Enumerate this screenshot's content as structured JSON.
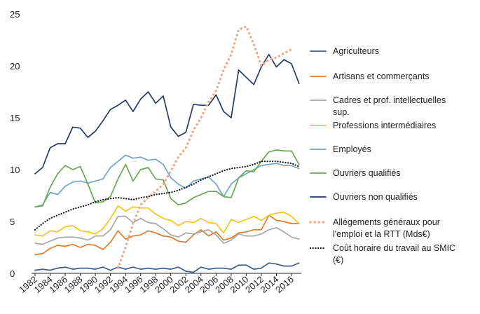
{
  "chart_data": {
    "type": "line",
    "title": "",
    "xlabel": "",
    "ylabel": "",
    "ylim": [
      0,
      25
    ],
    "yticks": [
      0,
      5,
      10,
      15,
      20,
      25
    ],
    "xticks": [
      1982,
      1984,
      1986,
      1988,
      1990,
      1992,
      1994,
      1996,
      1998,
      2000,
      2002,
      2004,
      2006,
      2008,
      2010,
      2012,
      2014,
      2016
    ],
    "xlim": [
      1982,
      2017
    ],
    "grid": false,
    "legend_position": "right",
    "series": [
      {
        "name": "Agriculteurs",
        "color": "#3a5f8a",
        "style": "solid",
        "x": [
          1982,
          1983,
          1984,
          1985,
          1986,
          1987,
          1988,
          1989,
          1990,
          1991,
          1992,
          1993,
          1994,
          1995,
          1996,
          1997,
          1998,
          1999,
          2000,
          2001,
          2002,
          2003,
          2004,
          2005,
          2006,
          2007,
          2008,
          2009,
          2010,
          2011,
          2012,
          2013,
          2014,
          2015,
          2016,
          2017
        ],
        "values": [
          0.3,
          0.4,
          0.3,
          0.5,
          0.6,
          0.4,
          0.5,
          0.5,
          0.4,
          0.6,
          0.3,
          0.6,
          0.4,
          0.6,
          0.4,
          0.5,
          0.4,
          0.5,
          0.4,
          0.6,
          0.2,
          0.1,
          0.6,
          0.4,
          0.5,
          0.5,
          0.4,
          0.8,
          0.8,
          0.4,
          0.5,
          1.0,
          0.9,
          0.7,
          0.7,
          1.0
        ]
      },
      {
        "name": "Artisans et commerçants",
        "color": "#e07b2e",
        "style": "solid",
        "x": [
          1982,
          1983,
          1984,
          1985,
          1986,
          1987,
          1988,
          1989,
          1990,
          1991,
          1992,
          1993,
          1994,
          1995,
          1996,
          1997,
          1998,
          1999,
          2000,
          2001,
          2002,
          2003,
          2004,
          2005,
          2006,
          2007,
          2008,
          2009,
          2010,
          2011,
          2012,
          2013,
          2014,
          2015,
          2016,
          2017
        ],
        "values": [
          1.8,
          1.9,
          2.4,
          2.7,
          2.6,
          2.8,
          2.5,
          2.8,
          2.7,
          2.3,
          3.0,
          4.1,
          3.3,
          3.6,
          3.7,
          4.1,
          3.9,
          3.6,
          3.5,
          3.1,
          3.0,
          3.7,
          4.2,
          3.6,
          4.0,
          3.2,
          3.4,
          3.9,
          4.0,
          4.2,
          4.2,
          5.6,
          5.1,
          5.0,
          4.8,
          4.8
        ]
      },
      {
        "name": "Cadres et prof. intellectuelles sup.",
        "color": "#a6a6a6",
        "style": "solid",
        "x": [
          1982,
          1983,
          1984,
          1985,
          1986,
          1987,
          1988,
          1989,
          1990,
          1991,
          1992,
          1993,
          1994,
          1995,
          1996,
          1997,
          1998,
          1999,
          2000,
          2001,
          2002,
          2003,
          2004,
          2005,
          2006,
          2007,
          2008,
          2009,
          2010,
          2011,
          2012,
          2013,
          2014,
          2015,
          2016,
          2017
        ],
        "values": [
          2.9,
          2.8,
          3.1,
          3.4,
          3.5,
          3.5,
          3.4,
          3.2,
          3.6,
          3.6,
          4.2,
          5.5,
          5.5,
          4.9,
          5.3,
          4.9,
          4.8,
          4.3,
          3.7,
          3.5,
          3.9,
          3.8,
          4.0,
          4.2,
          3.7,
          2.9,
          3.2,
          3.8,
          3.6,
          3.6,
          3.8,
          4.2,
          4.4,
          4.0,
          3.5,
          3.3
        ]
      },
      {
        "name": "Professions intermédiaires",
        "color": "#f5c518",
        "style": "solid",
        "x": [
          1982,
          1983,
          1984,
          1985,
          1986,
          1987,
          1988,
          1989,
          1990,
          1991,
          1992,
          1993,
          1994,
          1995,
          1996,
          1997,
          1998,
          1999,
          2000,
          2001,
          2002,
          2003,
          2004,
          2005,
          2006,
          2007,
          2008,
          2009,
          2010,
          2011,
          2012,
          2013,
          2014,
          2015,
          2016,
          2017
        ],
        "values": [
          3.7,
          3.6,
          4.1,
          4.0,
          4.5,
          4.6,
          4.1,
          4.0,
          3.8,
          4.3,
          5.3,
          6.5,
          6.0,
          6.4,
          6.3,
          6.3,
          5.7,
          5.3,
          5.1,
          4.6,
          5.0,
          4.9,
          5.3,
          4.9,
          4.8,
          3.9,
          5.2,
          4.9,
          5.2,
          5.5,
          5.1,
          5.6,
          5.8,
          5.9,
          5.5,
          4.8
        ]
      },
      {
        "name": "Employés",
        "color": "#6fa5cf",
        "style": "solid",
        "x": [
          1982,
          1983,
          1984,
          1985,
          1986,
          1987,
          1988,
          1989,
          1990,
          1991,
          1992,
          1993,
          1994,
          1995,
          1996,
          1997,
          1998,
          1999,
          2000,
          2001,
          2002,
          2003,
          2004,
          2005,
          2006,
          2007,
          2008,
          2009,
          2010,
          2011,
          2012,
          2013,
          2014,
          2015,
          2016,
          2017
        ],
        "values": [
          6.4,
          6.6,
          7.8,
          7.6,
          8.4,
          8.8,
          8.9,
          8.7,
          8.9,
          9.1,
          10.2,
          10.8,
          11.4,
          11.1,
          11.2,
          10.9,
          11.0,
          10.5,
          9.2,
          8.6,
          8.2,
          8.9,
          9.1,
          9.3,
          8.6,
          7.4,
          8.6,
          9.2,
          9.6,
          10.0,
          10.4,
          10.5,
          10.6,
          10.4,
          10.4,
          10.1
        ]
      },
      {
        "name": "Ouvriers qualifiés",
        "color": "#6aa84f",
        "style": "solid",
        "x": [
          1982,
          1983,
          1984,
          1985,
          1986,
          1987,
          1988,
          1989,
          1990,
          1991,
          1992,
          1993,
          1994,
          1995,
          1996,
          1997,
          1998,
          1999,
          2000,
          2001,
          2002,
          2003,
          2004,
          2005,
          2006,
          2007,
          2008,
          2009,
          2010,
          2011,
          2012,
          2013,
          2014,
          2015,
          2016,
          2017
        ],
        "values": [
          6.4,
          6.5,
          8.3,
          9.6,
          10.4,
          10.0,
          10.3,
          8.6,
          6.8,
          6.9,
          7.4,
          9.1,
          10.5,
          8.9,
          10.0,
          10.2,
          9.1,
          9.0,
          7.2,
          6.6,
          6.8,
          7.3,
          7.6,
          7.9,
          7.9,
          7.4,
          7.3,
          9.2,
          9.9,
          9.8,
          10.8,
          11.7,
          11.9,
          11.8,
          11.8,
          10.5
        ]
      },
      {
        "name": "Ouvriers non qualifiés",
        "color": "#253a66",
        "style": "solid",
        "x": [
          1982,
          1983,
          1984,
          1985,
          1986,
          1987,
          1988,
          1989,
          1990,
          1991,
          1992,
          1993,
          1994,
          1995,
          1996,
          1997,
          1998,
          1999,
          2000,
          2001,
          2002,
          2003,
          2004,
          2005,
          2006,
          2007,
          2008,
          2009,
          2010,
          2011,
          2012,
          2013,
          2014,
          2015,
          2016,
          2017
        ],
        "values": [
          9.6,
          10.2,
          12.1,
          12.5,
          12.5,
          14.1,
          14.0,
          13.1,
          13.7,
          14.7,
          15.8,
          16.2,
          16.7,
          15.6,
          16.8,
          17.5,
          16.4,
          17.1,
          14.1,
          13.2,
          13.6,
          16.3,
          16.2,
          16.2,
          17.2,
          15.6,
          15.0,
          19.6,
          18.9,
          18.2,
          19.9,
          21.1,
          19.9,
          20.6,
          20.2,
          18.3
        ]
      },
      {
        "name": "Allégements généraux pour l'emploi et la RTT (Mds€)",
        "color": "#f0a98a",
        "style": "dotted",
        "x": [
          1993,
          1994,
          1995,
          1996,
          1997,
          1998,
          1999,
          2000,
          2001,
          2002,
          2003,
          2004,
          2005,
          2006,
          2007,
          2008,
          2009,
          2010,
          2011,
          2012,
          2013,
          2014,
          2015,
          2016
        ],
        "values": [
          0.5,
          2.5,
          4.8,
          6.6,
          7.3,
          7.9,
          8.6,
          9.9,
          11.2,
          12.1,
          13.8,
          15.0,
          16.5,
          17.6,
          19.6,
          21.1,
          23.5,
          23.8,
          22.1,
          20.0,
          20.6,
          20.8,
          21.2,
          21.6
        ]
      },
      {
        "name": "Coût horaire du travail au SMIC (€)",
        "color": "#111111",
        "style": "dotted",
        "x": [
          1982,
          1983,
          1984,
          1985,
          1986,
          1987,
          1988,
          1989,
          1990,
          1991,
          1992,
          1993,
          1994,
          1995,
          1996,
          1997,
          1998,
          1999,
          2000,
          2001,
          2002,
          2003,
          2004,
          2005,
          2006,
          2007,
          2008,
          2009,
          2010,
          2011,
          2012,
          2013,
          2014,
          2015,
          2016,
          2017
        ],
        "values": [
          4.2,
          4.8,
          5.3,
          5.6,
          5.9,
          6.2,
          6.4,
          6.6,
          6.9,
          7.1,
          7.2,
          7.3,
          7.2,
          7.1,
          7.3,
          7.4,
          7.6,
          7.7,
          7.8,
          8.0,
          8.3,
          8.6,
          9.0,
          9.3,
          9.6,
          9.9,
          10.1,
          10.2,
          10.3,
          10.5,
          10.8,
          10.8,
          10.8,
          10.7,
          10.6,
          10.3
        ]
      }
    ]
  },
  "legend": {
    "items": [
      {
        "lines": [
          "Agriculteurs"
        ],
        "color": "#3a5f8a",
        "style": "solid"
      },
      {
        "lines": [
          "Artisans et commerçants"
        ],
        "color": "#e07b2e",
        "style": "solid"
      },
      {
        "lines": [
          "Cadres et prof. intellectuelles",
          "sup."
        ],
        "color": "#a6a6a6",
        "style": "solid"
      },
      {
        "lines": [
          "Professions intermédiaires"
        ],
        "color": "#f5c518",
        "style": "solid"
      },
      {
        "lines": [
          "Employés"
        ],
        "color": "#6fa5cf",
        "style": "solid"
      },
      {
        "lines": [
          "Ouvriers qualifiés"
        ],
        "color": "#6aa84f",
        "style": "solid"
      },
      {
        "lines": [
          "Ouvriers non qualifiés"
        ],
        "color": "#253a66",
        "style": "solid"
      },
      {
        "lines": [
          "Allégements généraux pour",
          "l'emploi et la RTT (Mds€)"
        ],
        "color": "#f0a98a",
        "style": "dotted"
      },
      {
        "lines": [
          "Coût horaire du travail au SMIC",
          "(€)"
        ],
        "color": "#111111",
        "style": "dotted"
      }
    ]
  }
}
